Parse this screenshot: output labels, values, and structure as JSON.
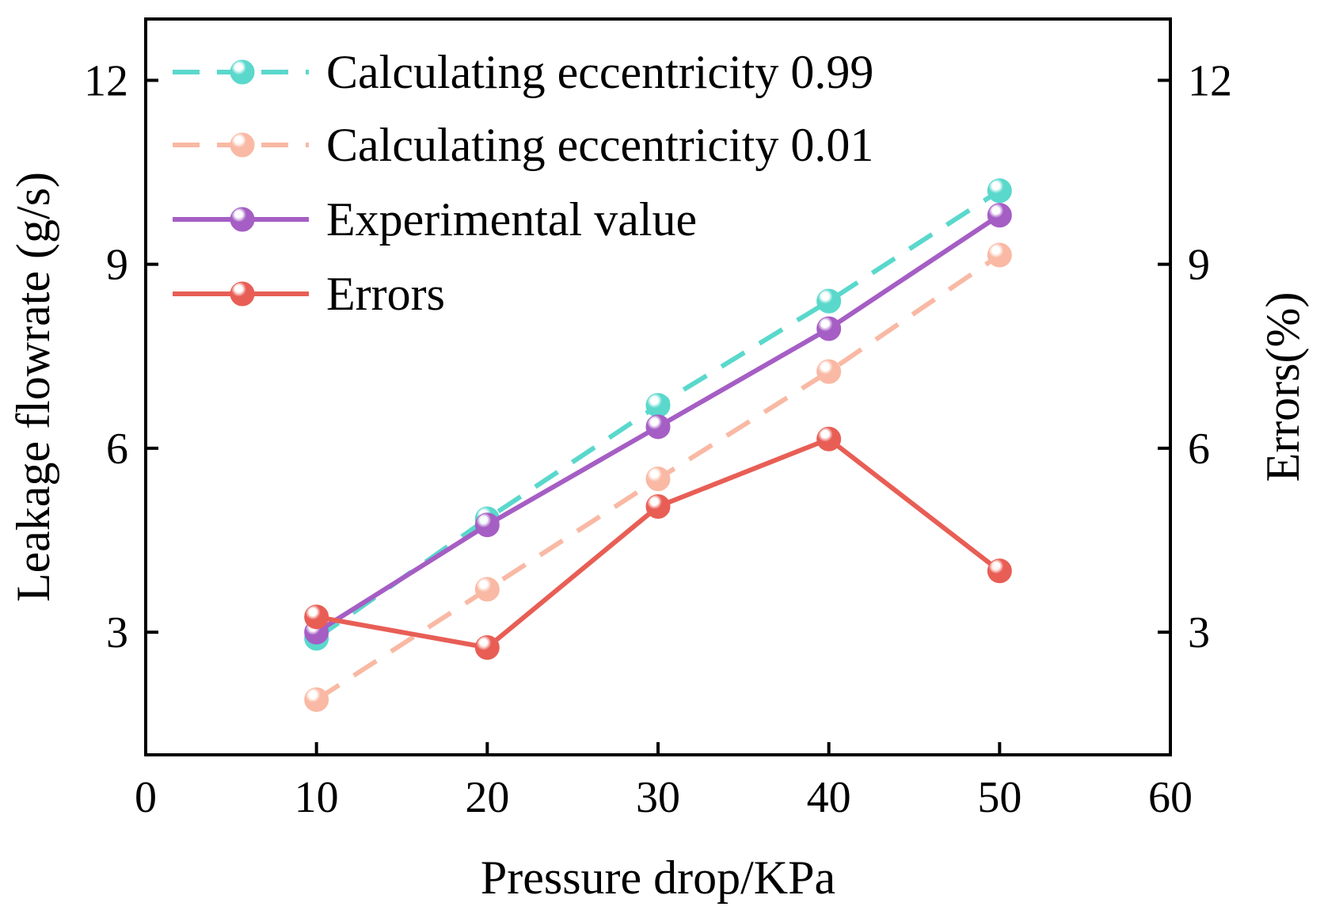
{
  "chart_data": {
    "type": "line",
    "x": [
      10,
      20,
      30,
      40,
      50
    ],
    "xlabel": "Pressure drop/KPa",
    "ylabel": "Leakage flowrate (g/s)",
    "y2label": "Errors(%)",
    "xlim": [
      0,
      60
    ],
    "ylim": [
      1,
      13
    ],
    "y2lim": [
      1,
      13
    ],
    "xticks": [
      0,
      10,
      20,
      30,
      40,
      50,
      60
    ],
    "yticks": [
      3,
      6,
      9,
      12
    ],
    "y2ticks": [
      3,
      6,
      9,
      12
    ],
    "grid": false,
    "legend_position": "top-left",
    "series": [
      {
        "name": "Calculating eccentricity 0.99",
        "values": [
          2.9,
          4.85,
          6.7,
          8.4,
          10.2
        ],
        "axis": "left",
        "color": "#5ad8cc",
        "style": "dashed"
      },
      {
        "name": "Calculating eccentricity 0.01",
        "values": [
          1.9,
          3.7,
          5.5,
          7.25,
          9.15
        ],
        "axis": "left",
        "color": "#f9b9a4",
        "style": "dashed"
      },
      {
        "name": "Experimental value",
        "values": [
          3.0,
          4.75,
          6.35,
          7.95,
          9.8
        ],
        "axis": "left",
        "color": "#a55ec4",
        "style": "solid"
      },
      {
        "name": "Errors",
        "values": [
          3.25,
          2.75,
          5.05,
          6.15,
          4.0
        ],
        "axis": "right",
        "color": "#e85e55",
        "style": "solid"
      }
    ]
  }
}
